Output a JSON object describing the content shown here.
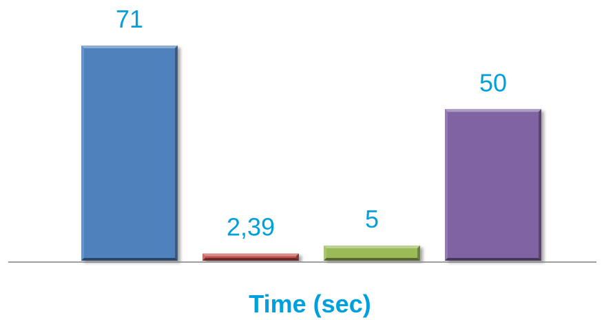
{
  "chart_data": {
    "type": "bar",
    "xlabel": "Time (sec)",
    "ylabel": "",
    "ylim": [
      0,
      71
    ],
    "grid": false,
    "legend": "none",
    "series": [
      {
        "values": [
          71,
          2.39,
          5,
          50
        ],
        "data_labels": [
          "71",
          "2,39",
          "5",
          "50"
        ],
        "colors": [
          "#4f81bd",
          "#c0504d",
          "#9bbb59",
          "#8064a2"
        ]
      }
    ],
    "label_color": "#00a0dc",
    "axis_color": "#7f7f7f"
  }
}
